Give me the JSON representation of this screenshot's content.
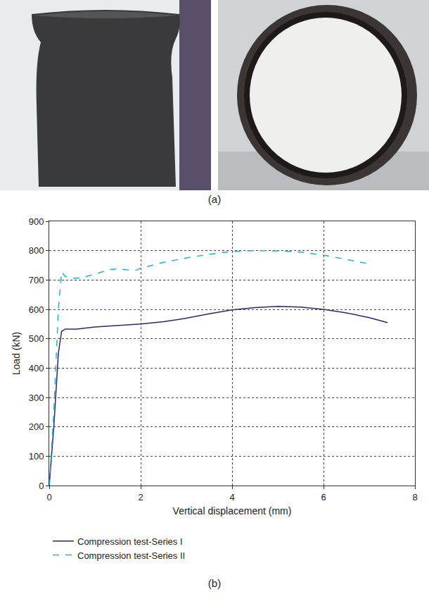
{
  "panel_labels": [
    "(a)",
    "(b)"
  ],
  "chart_data": {
    "type": "line",
    "x_label": "Vertical displacement (mm)",
    "y_label": "Load (kN)",
    "xlim": [
      0,
      8
    ],
    "xticks": [
      0,
      2,
      4,
      6,
      8
    ],
    "ylim": [
      0,
      900
    ],
    "yticks": [
      0,
      100,
      200,
      300,
      400,
      500,
      600,
      700,
      800,
      900
    ],
    "grid": true,
    "legend": "bottom",
    "series": [
      {
        "name": "Compression test-Series I",
        "color": "#2b2870",
        "line_style": "solid",
        "x": [
          0,
          0.1,
          0.2,
          0.27,
          0.35,
          0.6,
          1.0,
          1.3,
          1.6,
          2.0,
          2.5,
          3.0,
          3.5,
          4.0,
          4.5,
          5.0,
          5.5,
          6.0,
          6.5,
          7.0,
          7.4
        ],
        "values": [
          0,
          200,
          450,
          525,
          533,
          533,
          540,
          543,
          545,
          550,
          558,
          570,
          585,
          598,
          606,
          610,
          608,
          600,
          588,
          572,
          555
        ]
      },
      {
        "name": "Compression test-Series II",
        "color": "#1fb3d6",
        "line_style": "dashed",
        "x": [
          0,
          0.1,
          0.2,
          0.27,
          0.35,
          0.5,
          0.7,
          1.0,
          1.3,
          1.5,
          1.7,
          1.9,
          2.0,
          2.5,
          3.0,
          3.5,
          4.0,
          4.5,
          5.0,
          5.5,
          6.0,
          6.5,
          7.0
        ],
        "values": [
          0,
          250,
          600,
          728,
          712,
          705,
          708,
          720,
          735,
          738,
          735,
          733,
          740,
          760,
          775,
          788,
          797,
          800,
          799,
          795,
          785,
          770,
          755
        ]
      }
    ]
  }
}
